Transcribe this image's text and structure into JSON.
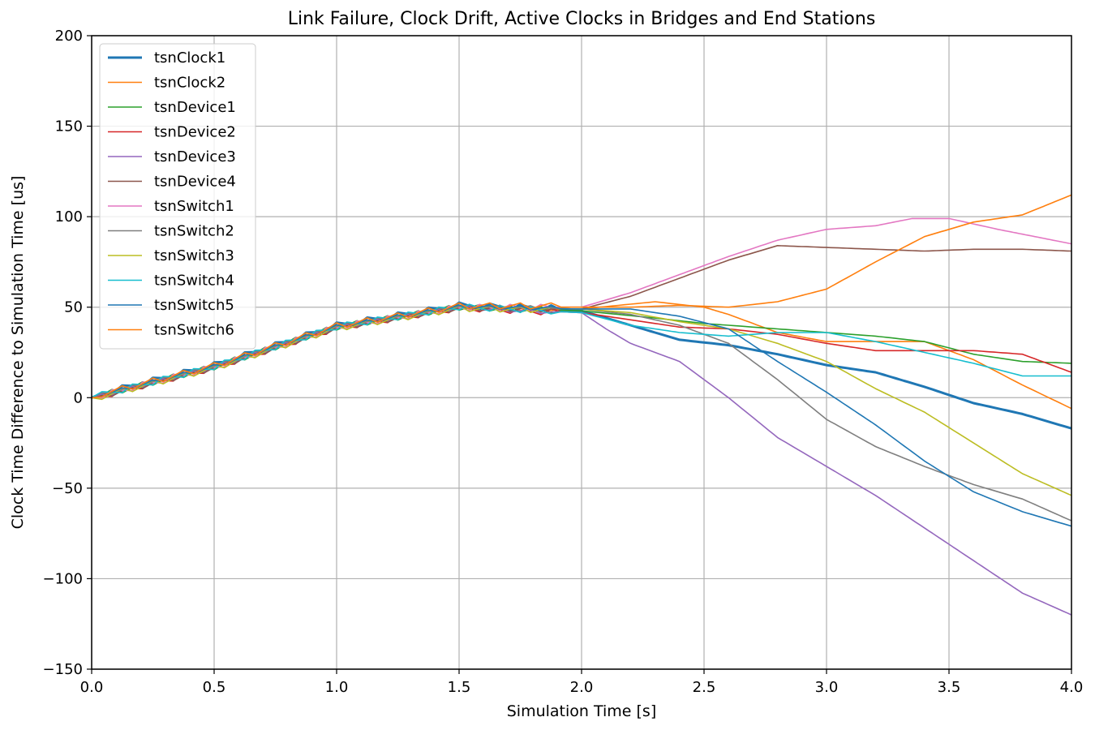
{
  "chart_data": {
    "type": "line",
    "title": "Link Failure, Clock Drift, Active Clocks in Bridges and End Stations",
    "xlabel": "Simulation Time [s]",
    "ylabel": "Clock Time Difference to Simulation Time [us]",
    "xlim": [
      0.0,
      4.0
    ],
    "ylim": [
      -150,
      200
    ],
    "xticks": [
      0.0,
      0.5,
      1.0,
      1.5,
      2.0,
      2.5,
      3.0,
      3.5,
      4.0
    ],
    "xtick_labels": [
      "0.0",
      "0.5",
      "1.0",
      "1.5",
      "2.0",
      "2.5",
      "3.0",
      "3.5",
      "4.0"
    ],
    "yticks": [
      -150,
      -100,
      -50,
      0,
      50,
      100,
      150,
      200
    ],
    "ytick_labels": [
      "−150",
      "−100",
      "−50",
      "0",
      "50",
      "100",
      "150",
      "200"
    ],
    "grid": true,
    "legend_position": "top-left",
    "series": [
      {
        "name": "tsnClock1",
        "color": "#1f77b4",
        "width": 3.0,
        "points": [
          [
            0,
            0
          ],
          [
            0.5,
            17
          ],
          [
            1.0,
            39
          ],
          [
            1.5,
            50
          ],
          [
            2.0,
            48
          ],
          [
            2.2,
            40
          ],
          [
            2.4,
            32
          ],
          [
            2.6,
            29
          ],
          [
            2.8,
            24
          ],
          [
            3.0,
            18
          ],
          [
            3.2,
            14
          ],
          [
            3.4,
            6
          ],
          [
            3.6,
            -3
          ],
          [
            3.8,
            -9
          ],
          [
            4.0,
            -17
          ]
        ]
      },
      {
        "name": "tsnClock2",
        "color": "#ff7f0e",
        "width": 1.6,
        "points": [
          [
            0,
            0
          ],
          [
            0.5,
            17
          ],
          [
            1.0,
            39
          ],
          [
            1.5,
            50
          ],
          [
            2.0,
            49
          ],
          [
            2.3,
            53
          ],
          [
            2.5,
            50
          ],
          [
            2.6,
            46
          ],
          [
            2.8,
            36
          ],
          [
            3.0,
            31
          ],
          [
            3.2,
            31
          ],
          [
            3.4,
            31
          ],
          [
            3.6,
            21
          ],
          [
            3.8,
            7
          ],
          [
            4.0,
            -6
          ]
        ]
      },
      {
        "name": "tsnDevice1",
        "color": "#2ca02c",
        "width": 1.6,
        "points": [
          [
            0,
            0
          ],
          [
            0.5,
            17
          ],
          [
            1.0,
            39
          ],
          [
            1.5,
            50
          ],
          [
            2.0,
            48
          ],
          [
            2.3,
            44
          ],
          [
            2.5,
            41
          ],
          [
            2.8,
            38
          ],
          [
            3.0,
            36
          ],
          [
            3.2,
            34
          ],
          [
            3.4,
            31
          ],
          [
            3.6,
            24
          ],
          [
            3.8,
            20
          ],
          [
            4.0,
            19
          ]
        ]
      },
      {
        "name": "tsnDevice2",
        "color": "#d62728",
        "width": 1.6,
        "points": [
          [
            0,
            0
          ],
          [
            0.5,
            17
          ],
          [
            1.0,
            39
          ],
          [
            1.5,
            50
          ],
          [
            2.0,
            47
          ],
          [
            2.2,
            43
          ],
          [
            2.4,
            39
          ],
          [
            2.6,
            38
          ],
          [
            2.8,
            35
          ],
          [
            3.0,
            30
          ],
          [
            3.2,
            26
          ],
          [
            3.4,
            26
          ],
          [
            3.6,
            26
          ],
          [
            3.8,
            24
          ],
          [
            4.0,
            14
          ]
        ]
      },
      {
        "name": "tsnDevice3",
        "color": "#9467bd",
        "width": 1.6,
        "points": [
          [
            0,
            0
          ],
          [
            0.5,
            17
          ],
          [
            1.0,
            39
          ],
          [
            1.5,
            50
          ],
          [
            2.0,
            47
          ],
          [
            2.1,
            38
          ],
          [
            2.2,
            30
          ],
          [
            2.4,
            20
          ],
          [
            2.6,
            0
          ],
          [
            2.8,
            -22
          ],
          [
            3.0,
            -38
          ],
          [
            3.2,
            -54
          ],
          [
            3.4,
            -72
          ],
          [
            3.6,
            -90
          ],
          [
            3.8,
            -108
          ],
          [
            4.0,
            -120
          ]
        ]
      },
      {
        "name": "tsnDevice4",
        "color": "#8c564b",
        "width": 1.6,
        "points": [
          [
            0,
            0
          ],
          [
            0.5,
            17
          ],
          [
            1.0,
            39
          ],
          [
            1.5,
            50
          ],
          [
            2.0,
            49
          ],
          [
            2.2,
            56
          ],
          [
            2.4,
            66
          ],
          [
            2.6,
            76
          ],
          [
            2.8,
            84
          ],
          [
            3.0,
            83
          ],
          [
            3.2,
            82
          ],
          [
            3.4,
            81
          ],
          [
            3.6,
            82
          ],
          [
            3.8,
            82
          ],
          [
            4.0,
            81
          ]
        ]
      },
      {
        "name": "tsnSwitch1",
        "color": "#e377c2",
        "width": 1.6,
        "points": [
          [
            0,
            0
          ],
          [
            0.5,
            17
          ],
          [
            1.0,
            39
          ],
          [
            1.5,
            50
          ],
          [
            2.0,
            50
          ],
          [
            2.2,
            58
          ],
          [
            2.4,
            68
          ],
          [
            2.6,
            78
          ],
          [
            2.8,
            87
          ],
          [
            3.0,
            93
          ],
          [
            3.2,
            95
          ],
          [
            3.35,
            99
          ],
          [
            3.5,
            99
          ],
          [
            3.7,
            93
          ],
          [
            3.85,
            89
          ],
          [
            4.0,
            85
          ]
        ]
      },
      {
        "name": "tsnSwitch2",
        "color": "#7f7f7f",
        "width": 1.6,
        "points": [
          [
            0,
            0
          ],
          [
            0.5,
            17
          ],
          [
            1.0,
            39
          ],
          [
            1.5,
            50
          ],
          [
            2.0,
            49
          ],
          [
            2.2,
            46
          ],
          [
            2.4,
            40
          ],
          [
            2.6,
            30
          ],
          [
            2.8,
            10
          ],
          [
            3.0,
            -12
          ],
          [
            3.2,
            -27
          ],
          [
            3.4,
            -38
          ],
          [
            3.6,
            -48
          ],
          [
            3.8,
            -56
          ],
          [
            4.0,
            -68
          ]
        ]
      },
      {
        "name": "tsnSwitch3",
        "color": "#bcbd22",
        "width": 1.6,
        "points": [
          [
            0,
            0
          ],
          [
            0.5,
            17
          ],
          [
            1.0,
            39
          ],
          [
            1.5,
            50
          ],
          [
            2.0,
            49
          ],
          [
            2.2,
            47
          ],
          [
            2.4,
            42
          ],
          [
            2.6,
            38
          ],
          [
            2.8,
            30
          ],
          [
            3.0,
            20
          ],
          [
            3.2,
            5
          ],
          [
            3.4,
            -8
          ],
          [
            3.6,
            -25
          ],
          [
            3.8,
            -42
          ],
          [
            4.0,
            -54
          ]
        ]
      },
      {
        "name": "tsnSwitch4",
        "color": "#17becf",
        "width": 1.6,
        "points": [
          [
            0,
            0
          ],
          [
            0.5,
            17
          ],
          [
            1.0,
            39
          ],
          [
            1.5,
            50
          ],
          [
            2.0,
            47
          ],
          [
            2.2,
            40
          ],
          [
            2.4,
            36
          ],
          [
            2.6,
            34
          ],
          [
            2.8,
            36
          ],
          [
            3.0,
            36
          ],
          [
            3.2,
            31
          ],
          [
            3.4,
            25
          ],
          [
            3.6,
            19
          ],
          [
            3.8,
            12
          ],
          [
            4.0,
            12
          ]
        ]
      },
      {
        "name": "tsnSwitch5",
        "color": "#1f77b4",
        "width": 1.6,
        "points": [
          [
            0,
            0
          ],
          [
            0.5,
            17
          ],
          [
            1.0,
            39
          ],
          [
            1.5,
            50
          ],
          [
            2.0,
            49
          ],
          [
            2.2,
            49
          ],
          [
            2.4,
            45
          ],
          [
            2.6,
            38
          ],
          [
            2.8,
            20
          ],
          [
            3.0,
            3
          ],
          [
            3.2,
            -15
          ],
          [
            3.4,
            -35
          ],
          [
            3.6,
            -52
          ],
          [
            3.8,
            -63
          ],
          [
            4.0,
            -71
          ]
        ]
      },
      {
        "name": "tsnSwitch6",
        "color": "#ff7f0e",
        "width": 1.6,
        "points": [
          [
            0,
            0
          ],
          [
            0.5,
            17
          ],
          [
            1.0,
            39
          ],
          [
            1.5,
            50
          ],
          [
            2.0,
            50
          ],
          [
            2.2,
            50
          ],
          [
            2.4,
            51
          ],
          [
            2.6,
            50
          ],
          [
            2.8,
            53
          ],
          [
            3.0,
            60
          ],
          [
            3.2,
            75
          ],
          [
            3.4,
            89
          ],
          [
            3.6,
            97
          ],
          [
            3.8,
            101
          ],
          [
            4.0,
            112
          ]
        ]
      }
    ]
  }
}
